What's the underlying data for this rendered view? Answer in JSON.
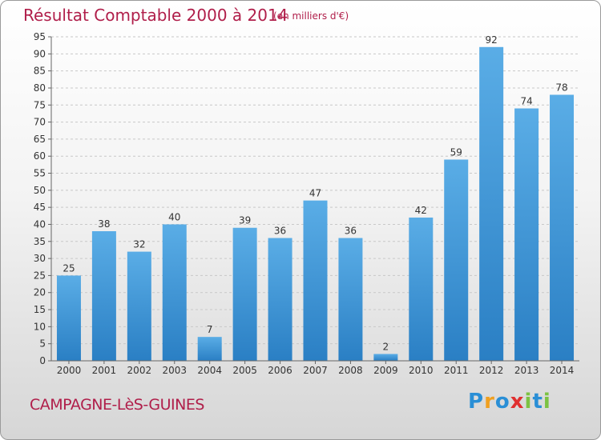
{
  "chart_data": {
    "type": "bar",
    "title": "Résultat Comptable 2000 à 2014",
    "subtitle": "(en milliers d'€)",
    "categories": [
      "2000",
      "2001",
      "2002",
      "2003",
      "2004",
      "2005",
      "2006",
      "2007",
      "2008",
      "2009",
      "2010",
      "2011",
      "2012",
      "2013",
      "2014"
    ],
    "values": [
      25,
      38,
      32,
      40,
      7,
      39,
      36,
      47,
      36,
      2,
      42,
      59,
      92,
      74,
      78
    ],
    "ylim": [
      0,
      95
    ],
    "yticks": [
      0,
      5,
      10,
      15,
      20,
      25,
      30,
      35,
      40,
      45,
      50,
      55,
      60,
      65,
      70,
      75,
      80,
      85,
      90,
      95
    ],
    "xlabel": "",
    "ylabel": "",
    "grid": true,
    "bar_color": "#3f97d8"
  },
  "footer": {
    "commune": "CAMPAGNE-LèS-GUINES"
  },
  "logo": {
    "text": "Proxiti",
    "letters": [
      {
        "ch": "P",
        "color": "#2a8fd6"
      },
      {
        "ch": "r",
        "color": "#f0a020"
      },
      {
        "ch": "o",
        "color": "#2a8fd6"
      },
      {
        "ch": "x",
        "color": "#e03030"
      },
      {
        "ch": "i",
        "color": "#7cc242"
      },
      {
        "ch": "t",
        "color": "#2a8fd6"
      },
      {
        "ch": "i",
        "color": "#7cc242"
      }
    ]
  }
}
